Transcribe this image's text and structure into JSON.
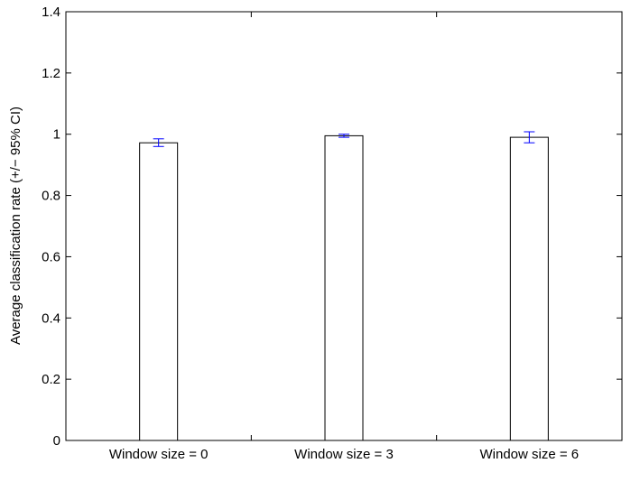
{
  "chart_data": {
    "type": "bar",
    "categories": [
      "Window size = 0",
      "Window size = 3",
      "Window size = 6"
    ],
    "values": [
      0.972,
      0.995,
      0.99
    ],
    "error_bars": {
      "label": "95% CI",
      "lower": [
        0.96,
        0.99,
        0.972
      ],
      "upper": [
        0.985,
        1.0,
        1.008
      ]
    },
    "title": "",
    "xlabel": "",
    "ylabel": "Average classification rate (+/− 95% CI)",
    "ylim": [
      0,
      1.4
    ],
    "yticks": [
      "0",
      "0.2",
      "0.4",
      "0.6",
      "0.8",
      "1",
      "1.2",
      "1.4"
    ],
    "ytick_values": [
      0,
      0.2,
      0.4,
      0.6,
      0.8,
      1.0,
      1.2,
      1.4
    ],
    "grid": false,
    "legend": "none",
    "colors": {
      "bar_fill": "#ffffff",
      "bar_edge": "#000000",
      "error_bar": "#0000ff",
      "axes": "#000000"
    }
  }
}
